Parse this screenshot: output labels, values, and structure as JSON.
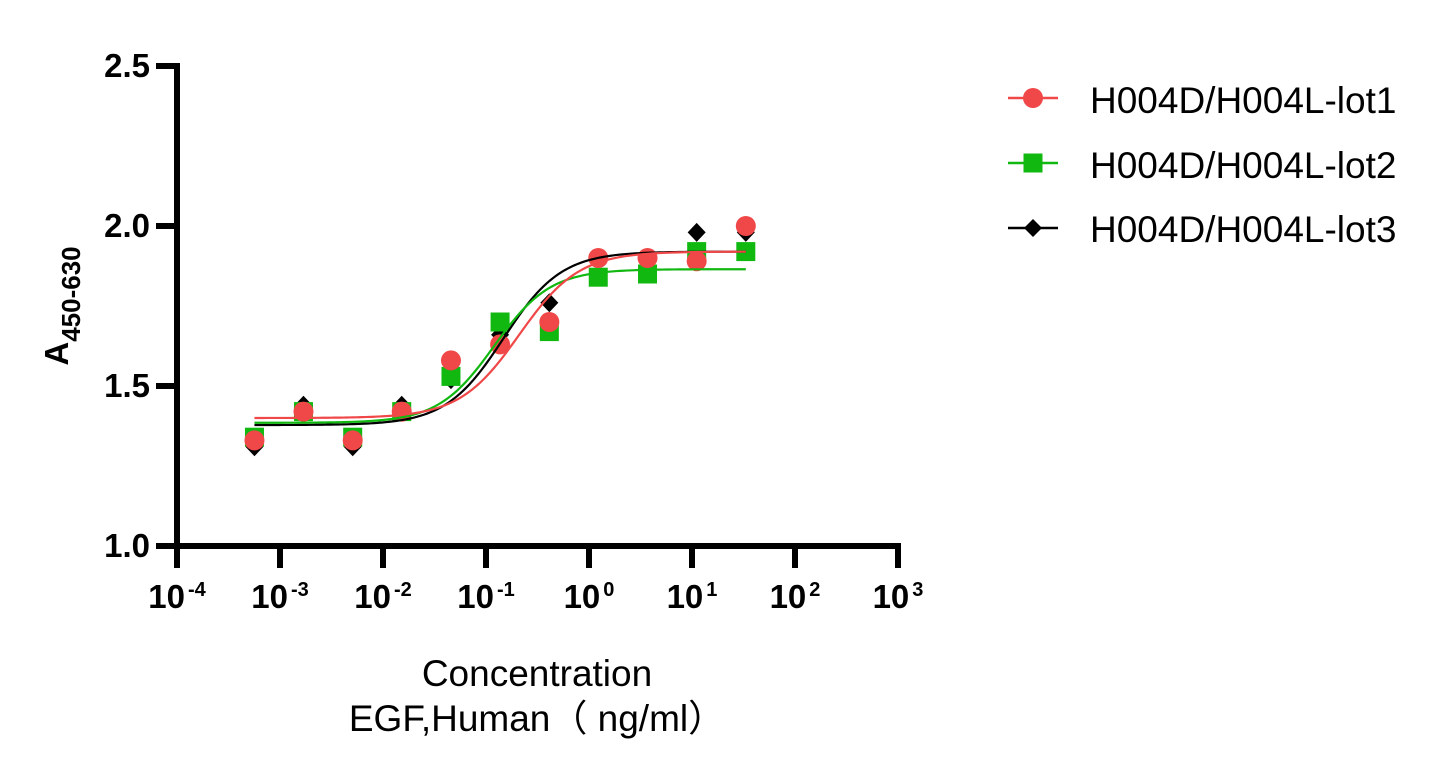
{
  "chart_data": {
    "type": "scatter",
    "fit": "four-parameter logistic curve per series",
    "title": "",
    "xlabel": "Concentration EGF,Human（ ng/ml）",
    "xlabel_lines": [
      "Concentration",
      "EGF,Human（ ng/ml）"
    ],
    "ylabel": "A450-630",
    "ylabel_main": "A",
    "ylabel_sub": "450-630",
    "xscale": "log10",
    "xlim": [
      0.0001,
      1000
    ],
    "ylim": [
      1.0,
      2.5
    ],
    "grid": false,
    "legend_position": "right",
    "x_ticks": [
      0.0001,
      0.001,
      0.01,
      0.1,
      1,
      10,
      100,
      1000
    ],
    "x_tick_labels": [
      {
        "base": "10",
        "exp": "-4"
      },
      {
        "base": "10",
        "exp": "-3"
      },
      {
        "base": "10",
        "exp": "-2"
      },
      {
        "base": "10",
        "exp": "-1"
      },
      {
        "base": "10",
        "exp": "0"
      },
      {
        "base": "10",
        "exp": "1"
      },
      {
        "base": "10",
        "exp": "2"
      },
      {
        "base": "10",
        "exp": "3"
      }
    ],
    "y_ticks": [
      1.0,
      1.5,
      2.0,
      2.5
    ],
    "y_tick_labels": [
      "1.0",
      "1.5",
      "2.0",
      "2.5"
    ],
    "x": [
      0.000565,
      0.00169,
      0.00508,
      0.0152,
      0.0457,
      0.137,
      0.412,
      1.23,
      3.7,
      11.1,
      33.3
    ],
    "series": [
      {
        "name": "H004D/H004L-lot1",
        "color": "#F04848",
        "marker": "circle",
        "values": [
          1.33,
          1.42,
          1.33,
          1.42,
          1.58,
          1.63,
          1.7,
          1.9,
          1.9,
          1.89,
          2.0
        ],
        "fit": {
          "bottom": 1.4,
          "top": 1.92,
          "ec50": 0.21,
          "hill": 1.5
        }
      },
      {
        "name": "H004D/H004L-lot2",
        "color": "#10B810",
        "marker": "square",
        "values": [
          1.34,
          1.42,
          1.34,
          1.42,
          1.53,
          1.7,
          1.67,
          1.84,
          1.85,
          1.92,
          1.92
        ],
        "fit": {
          "bottom": 1.385,
          "top": 1.865,
          "ec50": 0.12,
          "hill": 1.6
        }
      },
      {
        "name": "H004D/H004L-lot3",
        "color": "#000000",
        "marker": "diamond",
        "values": [
          1.31,
          1.44,
          1.31,
          1.44,
          1.52,
          1.66,
          1.76,
          1.9,
          1.85,
          1.98,
          1.98
        ],
        "fit": {
          "bottom": 1.378,
          "top": 1.92,
          "ec50": 0.148,
          "hill": 1.55
        }
      }
    ]
  }
}
